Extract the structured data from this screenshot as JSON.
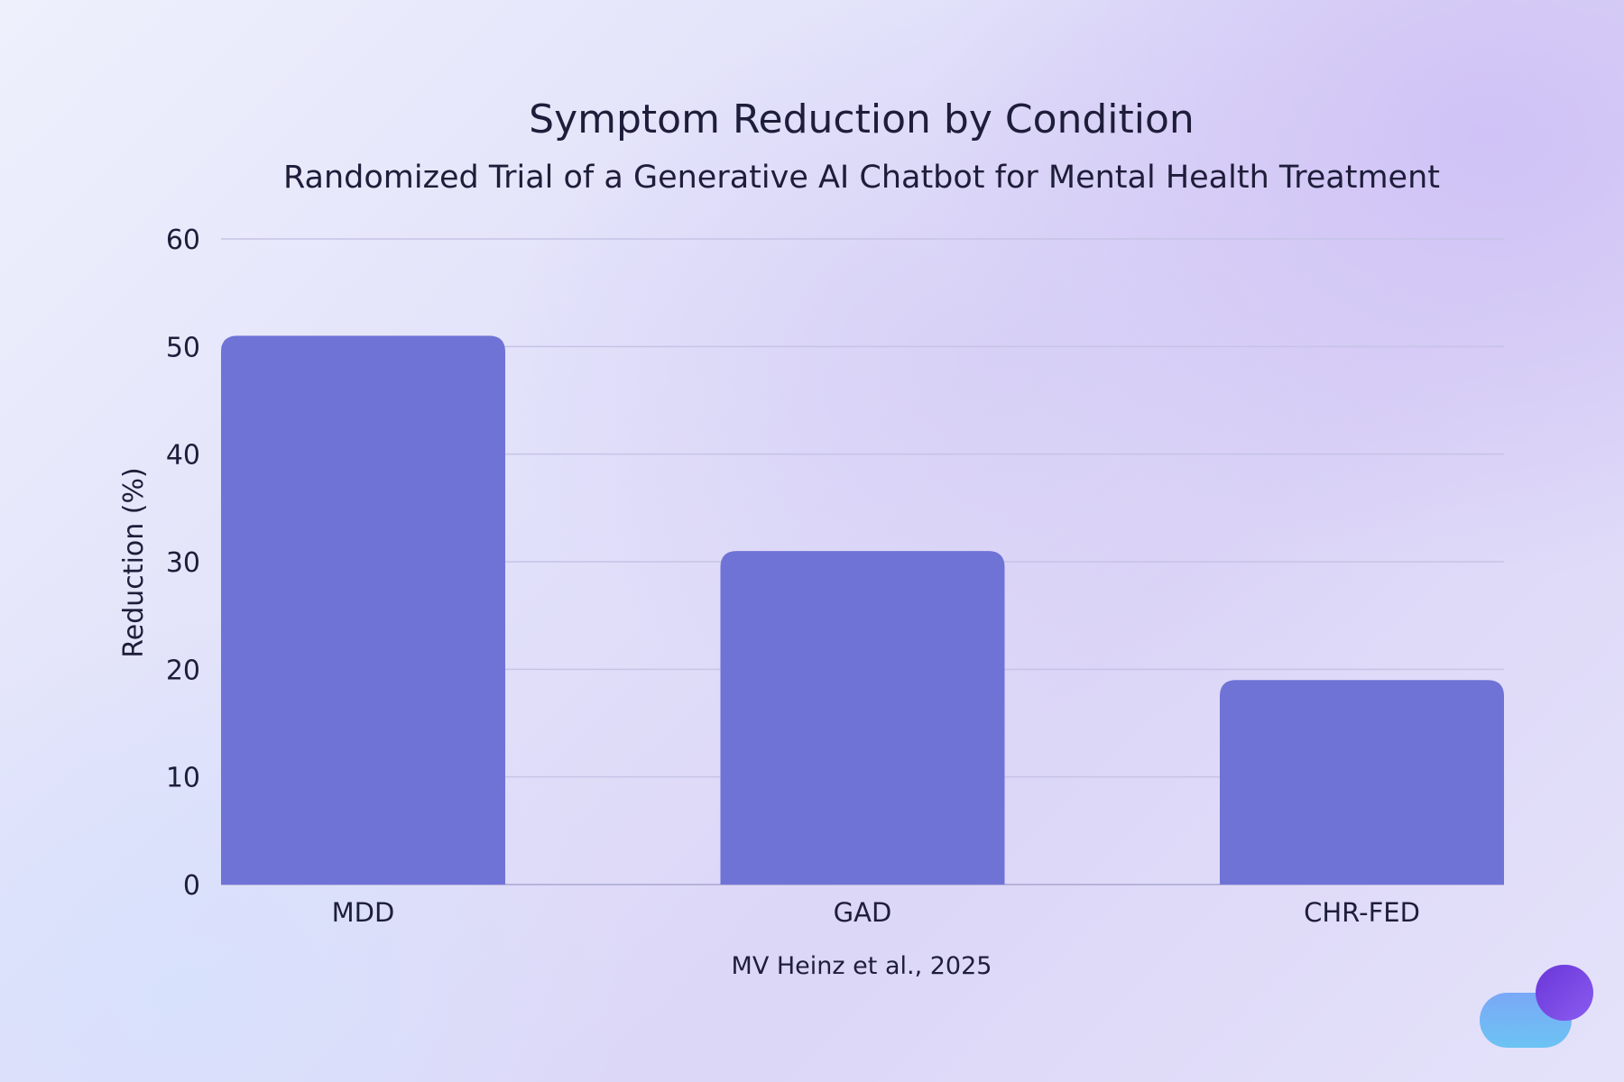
{
  "chart_data": {
    "type": "bar",
    "title": "Symptom Reduction by Condition",
    "subtitle": "Randomized Trial of a Generative AI Chatbot for Mental Health Treatment",
    "categories": [
      "MDD",
      "GAD",
      "CHR-FED"
    ],
    "values": [
      51,
      31,
      19
    ],
    "xlabel": "",
    "ylabel": "Reduction (%)",
    "ylim": [
      0,
      60
    ],
    "yticks": [
      0,
      10,
      20,
      30,
      40,
      50,
      60
    ],
    "grid": true,
    "legend": "none",
    "bar_color": "#6f73d6",
    "source": "MV Heinz et al., 2025"
  },
  "logo": {
    "name": "logo-icon",
    "colors": [
      "#6fb6f5",
      "#7b4fe8"
    ]
  }
}
